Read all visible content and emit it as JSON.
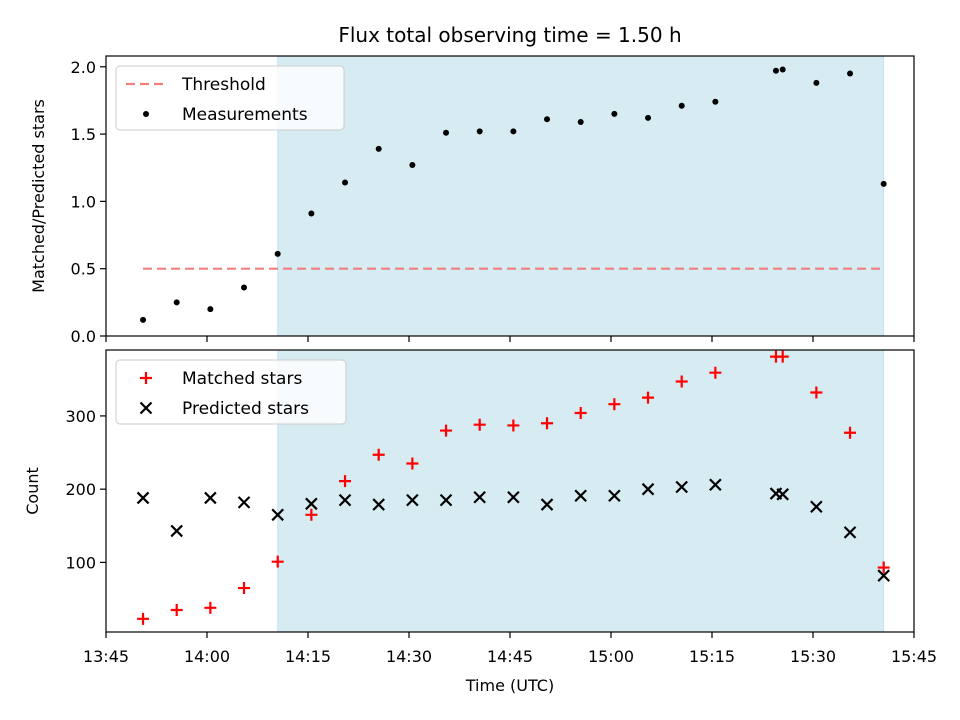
{
  "chart_data": [
    {
      "type": "scatter",
      "title": "Flux total observing time = 1.50 h",
      "xlabel": "",
      "ylabel": "Matched/Predicted stars",
      "xlim": [
        "13:45",
        "15:45"
      ],
      "ylim": [
        0,
        2.08
      ],
      "yticks": [
        "0.0",
        "0.5",
        "1.0",
        "1.5",
        "2.0"
      ],
      "grid": false,
      "legend": "top-left",
      "shaded_region": {
        "x_start": "14:10.5",
        "x_end": "15:40.5",
        "color": "#add8e6"
      },
      "series": [
        {
          "name": "Threshold",
          "kind": "line",
          "style": "dashed",
          "color": "#f08080",
          "x": [
            "13:50.5",
            "15:40.5"
          ],
          "values": [
            0.5,
            0.5
          ]
        },
        {
          "name": "Measurements",
          "kind": "points",
          "color": "#000000",
          "x": [
            "13:50.5",
            "13:55.5",
            "14:00.5",
            "14:05.5",
            "14:10.5",
            "14:15.5",
            "14:20.5",
            "14:25.5",
            "14:30.5",
            "14:35.5",
            "14:40.5",
            "14:45.5",
            "14:50.5",
            "14:55.5",
            "15:00.5",
            "15:05.5",
            "15:10.5",
            "15:15.5",
            "15:24.5",
            "15:25.5",
            "15:30.5",
            "15:35.5",
            "15:40.5"
          ],
          "values": [
            0.12,
            0.25,
            0.2,
            0.36,
            0.61,
            0.91,
            1.14,
            1.39,
            1.27,
            1.51,
            1.52,
            1.52,
            1.61,
            1.59,
            1.65,
            1.62,
            1.71,
            1.74,
            1.97,
            1.98,
            1.88,
            1.95,
            1.13
          ]
        }
      ]
    },
    {
      "type": "scatter",
      "title": "",
      "xlabel": "Time (UTC)",
      "ylabel": "Count",
      "xlim": [
        "13:45",
        "15:45"
      ],
      "ylim": [
        5,
        390
      ],
      "xticks": [
        "13:45",
        "14:00",
        "14:15",
        "14:30",
        "14:45",
        "15:00",
        "15:15",
        "15:30",
        "15:45"
      ],
      "yticks": [
        "100",
        "200",
        "300"
      ],
      "grid": false,
      "legend": "top-left",
      "shaded_region": {
        "x_start": "14:10.5",
        "x_end": "15:40.5",
        "color": "#add8e6"
      },
      "series": [
        {
          "name": "Matched stars",
          "marker": "+",
          "color": "#ff0000",
          "x": [
            "13:50.5",
            "13:55.5",
            "14:00.5",
            "14:05.5",
            "14:10.5",
            "14:15.5",
            "14:20.5",
            "14:25.5",
            "14:30.5",
            "14:35.5",
            "14:40.5",
            "14:45.5",
            "14:50.5",
            "14:55.5",
            "15:00.5",
            "15:05.5",
            "15:10.5",
            "15:15.5",
            "15:24.5",
            "15:25.5",
            "15:30.5",
            "15:35.5",
            "15:40.5"
          ],
          "values": [
            23,
            35,
            38,
            65,
            101,
            165,
            211,
            247,
            235,
            280,
            288,
            287,
            290,
            304,
            316,
            325,
            347,
            359,
            381,
            381,
            332,
            277,
            93
          ]
        },
        {
          "name": "Predicted stars",
          "marker": "x",
          "color": "#000000",
          "x": [
            "13:50.5",
            "13:55.5",
            "14:00.5",
            "14:05.5",
            "14:10.5",
            "14:15.5",
            "14:20.5",
            "14:25.5",
            "14:30.5",
            "14:35.5",
            "14:40.5",
            "14:45.5",
            "14:50.5",
            "14:55.5",
            "15:00.5",
            "15:05.5",
            "15:10.5",
            "15:15.5",
            "15:24.5",
            "15:25.5",
            "15:30.5",
            "15:35.5",
            "15:40.5"
          ],
          "values": [
            188,
            143,
            188,
            182,
            165,
            180,
            185,
            179,
            185,
            185,
            189,
            189,
            179,
            191,
            191,
            200,
            203,
            206,
            194,
            193,
            176,
            141,
            82
          ]
        }
      ]
    }
  ]
}
